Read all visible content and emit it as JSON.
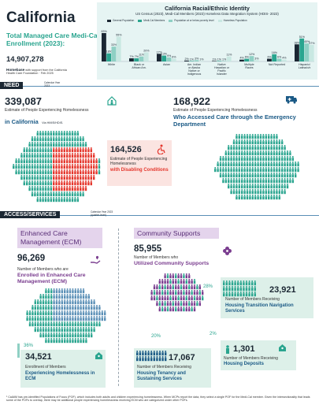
{
  "header": {
    "title": "California",
    "subtitle": "Total Managed Care Medi-Cal Enrollment (2023):",
    "enrollment": "14,907,278",
    "logo_name": "Homebase",
    "logo_tail": "with support from the California",
    "logo_line2": "Health Care Foundation · Feb 2025"
  },
  "chart_data": {
    "type": "bar",
    "title": "California Racial/Ethnic Identity",
    "subtitle": "US Census (2023), Medi-Cal Members (2023) Homeless Data Integration System (HDIS- 2023)",
    "categories": [
      "White",
      "Black or African Am.",
      "Asian",
      "Am. Indian or Alaska Native or Indigenous",
      "Native Hawaiian or Pacific Islander",
      "Multiple Races",
      "Not Reported",
      "Hispanic/ Latina/o/x"
    ],
    "series": [
      {
        "name": "General Population",
        "color": "#1b2733",
        "values": [
          63,
          7,
          17,
          2,
          1,
          4,
          6,
          38
        ]
      },
      {
        "name": "Medi-Cal Members",
        "color": "#2aa58f",
        "values": [
          18,
          7,
          13,
          1,
          1,
          6,
          16,
          51
        ]
      },
      {
        "name": "Population at or below poverty level",
        "color": "#8fd0c4",
        "values": [
          33,
          11,
          9,
          3,
          1,
          12,
          6,
          40
        ]
      },
      {
        "name": "Homeless Population",
        "color": "#c9e8e2",
        "values": [
          55,
          20,
          6,
          1,
          11,
          3,
          4,
          37
        ]
      }
    ],
    "ylim": [
      0,
      70
    ],
    "legend": "top"
  },
  "need": {
    "label": "NEED",
    "year_note": "Calendar Year 2023",
    "left": {
      "number": "339,087",
      "desc": "Estimate of People Experiencing Homelessness",
      "highlight": "in California",
      "source": "Via HMIS/HDIS."
    },
    "right": {
      "number": "168,922",
      "desc": "Estimate of People Experiencing Homelessness",
      "highlight": "Who Accessed Care through the Emergency Department"
    },
    "disab": {
      "number": "164,526",
      "desc": "Estimate of People Experiencing Homelessness",
      "highlight": "with Disabling Conditions"
    }
  },
  "access": {
    "label": "ACCESS/SERVICES",
    "year_note": "Calendar Year 2023 (quarter-level)",
    "ecm": {
      "heading": "Enhanced Care Management (ECM)",
      "number": "96,269",
      "desc": "Number of Members who are",
      "highlight": "Enrolled in Enhanced Care Management (ECM)",
      "pct": "36%",
      "sub_number": "34,521",
      "sub_desc": "Enrollment of Members",
      "sub_highlight": "Experiencing Homelessness in ECM"
    },
    "cs": {
      "heading": "Community Supports",
      "number": "85,955",
      "desc": "Number of Members who",
      "highlight": "Utilized Community Supports",
      "nav_pct": "28%",
      "nav_number": "23,921",
      "nav_desc": "Number of Members Receiving",
      "nav_highlight": "Housing Transition Navigation Services",
      "dep_pct": "2%",
      "dep_number": "1,301",
      "dep_desc": "Number of Members Receiving",
      "dep_highlight": "Housing Deposits",
      "ten_pct": "20%",
      "ten_number": "17,067",
      "ten_desc": "Number of Members Receiving",
      "ten_highlight": "Housing Tenancy and Sustaining Services"
    }
  },
  "footnote": "¹ CalAIM has pre-identified Populations of Focus (POF), which includes both adults and children experiencing homelessness. When MCPs report the data, they select a single POF for the Medi-Cal member. Given the intersectionality that leads some of the POFs to overlap, there may be additional people experiencing homelessness receiving ECM who are categorized under other POFs."
}
